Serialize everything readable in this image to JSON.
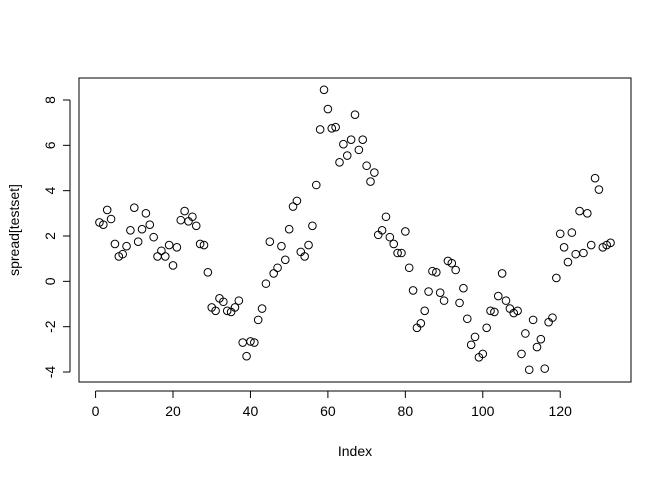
{
  "chart_data": {
    "type": "scatter",
    "x_label": "Index",
    "y_label": "spread[testset]",
    "x": [
      1,
      2,
      3,
      4,
      5,
      6,
      7,
      8,
      9,
      10,
      11,
      12,
      13,
      14,
      15,
      16,
      17,
      18,
      19,
      20,
      21,
      22,
      23,
      24,
      25,
      26,
      27,
      28,
      29,
      30,
      31,
      32,
      33,
      34,
      35,
      36,
      37,
      38,
      39,
      40,
      41,
      42,
      43,
      44,
      45,
      46,
      47,
      48,
      49,
      50,
      51,
      52,
      53,
      54,
      55,
      56,
      57,
      58,
      59,
      60,
      61,
      62,
      63,
      64,
      65,
      66,
      67,
      68,
      69,
      70,
      71,
      72,
      73,
      74,
      75,
      76,
      77,
      78,
      79,
      80,
      81,
      82,
      83,
      84,
      85,
      86,
      87,
      88,
      89,
      90,
      91,
      92,
      93,
      94,
      95,
      96,
      97,
      98,
      99,
      100,
      101,
      102,
      103,
      104,
      105,
      106,
      107,
      108,
      109,
      110,
      111,
      112,
      113,
      114,
      115,
      116,
      117,
      118,
      119,
      120,
      121,
      122,
      123,
      124,
      125,
      126,
      127,
      128,
      129,
      130,
      131,
      132,
      133
    ],
    "values": [
      2.6,
      2.5,
      3.15,
      2.75,
      1.65,
      1.1,
      1.2,
      1.55,
      2.25,
      3.25,
      1.75,
      2.3,
      3.0,
      2.5,
      1.95,
      1.1,
      1.35,
      1.1,
      1.6,
      0.7,
      1.5,
      2.7,
      3.1,
      2.65,
      2.85,
      2.45,
      1.65,
      1.6,
      0.4,
      -1.15,
      -1.3,
      -0.75,
      -0.9,
      -1.3,
      -1.35,
      -1.15,
      -0.85,
      -2.7,
      -3.3,
      -2.65,
      -2.7,
      -1.7,
      -1.2,
      -0.1,
      1.75,
      0.35,
      0.6,
      1.55,
      0.95,
      2.3,
      3.3,
      3.55,
      1.3,
      1.1,
      1.6,
      2.45,
      4.25,
      6.7,
      8.45,
      7.6,
      6.75,
      6.8,
      5.25,
      6.05,
      5.55,
      6.25,
      7.35,
      5.8,
      6.25,
      5.1,
      4.4,
      4.8,
      2.05,
      2.25,
      2.85,
      1.95,
      1.65,
      1.25,
      1.25,
      2.2,
      0.6,
      -0.4,
      -2.05,
      -1.85,
      -1.3,
      -0.45,
      0.45,
      0.4,
      -0.5,
      -0.85,
      0.9,
      0.8,
      0.5,
      -0.95,
      -0.3,
      -1.65,
      -2.8,
      -2.45,
      -3.35,
      -3.2,
      -2.05,
      -1.3,
      -1.35,
      -0.65,
      0.35,
      -0.85,
      -1.2,
      -1.4,
      -1.3,
      -3.2,
      -2.3,
      -3.9,
      -1.7,
      -2.9,
      -2.55,
      -3.85,
      -1.8,
      -1.6,
      0.15,
      2.1,
      1.5,
      0.85,
      2.15,
      1.2,
      3.1,
      1.25,
      3.0,
      1.6,
      4.55,
      4.05,
      1.5,
      1.6,
      1.7
    ],
    "color": "#000000",
    "xlim": [
      -4.28,
      138.28
    ],
    "xticks": [
      0,
      20,
      40,
      60,
      80,
      100,
      120
    ],
    "ylim": [
      -4.44,
      8.97
    ],
    "yticks": [
      -4,
      -2,
      0,
      2,
      4,
      6,
      8
    ]
  }
}
